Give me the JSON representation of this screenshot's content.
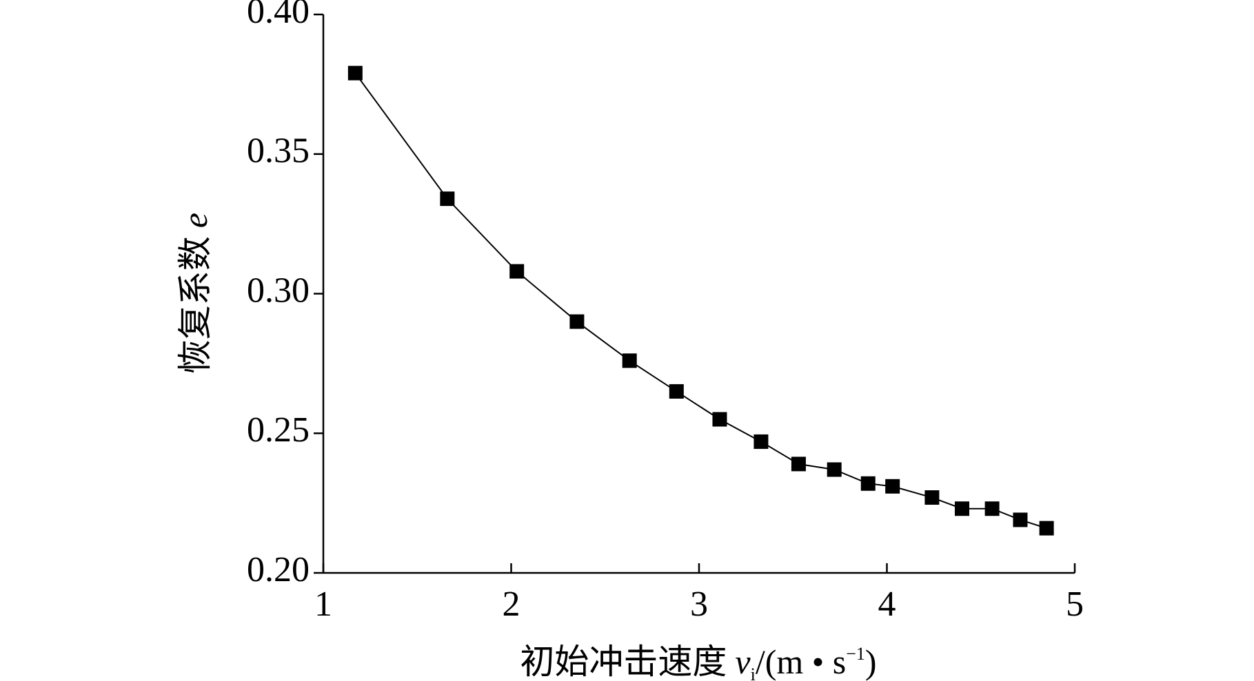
{
  "chart_data": {
    "type": "line",
    "xlabel": {
      "text": "初始冲击速度",
      "symbol": "v",
      "subscript": "i",
      "unit": "/(m • s",
      "superscript": "−1",
      "close": ")"
    },
    "ylabel": {
      "text": "恢复系数",
      "symbol": "e"
    },
    "x": [
      1.17,
      1.66,
      2.03,
      2.35,
      2.63,
      2.88,
      3.11,
      3.33,
      3.53,
      3.72,
      3.9,
      4.03,
      4.24,
      4.4,
      4.56,
      4.71,
      4.85
    ],
    "series": [
      {
        "color": "#000000",
        "values": [
          0.379,
          0.334,
          0.308,
          0.29,
          0.276,
          0.265,
          0.255,
          0.247,
          0.239,
          0.237,
          0.232,
          0.231,
          0.227,
          0.223,
          0.223,
          0.219,
          0.216
        ]
      }
    ],
    "xlim": [
      1,
      5
    ],
    "xticks": [
      1,
      2,
      3,
      4,
      5
    ],
    "ylim": [
      0.2,
      0.4
    ],
    "yticks": [
      {
        "value": 0.2,
        "label": "0.20"
      },
      {
        "value": 0.25,
        "label": "0.25"
      },
      {
        "value": 0.3,
        "label": "0.30"
      },
      {
        "value": 0.35,
        "label": "0.35"
      },
      {
        "value": 0.4,
        "label": "0.40"
      }
    ]
  }
}
